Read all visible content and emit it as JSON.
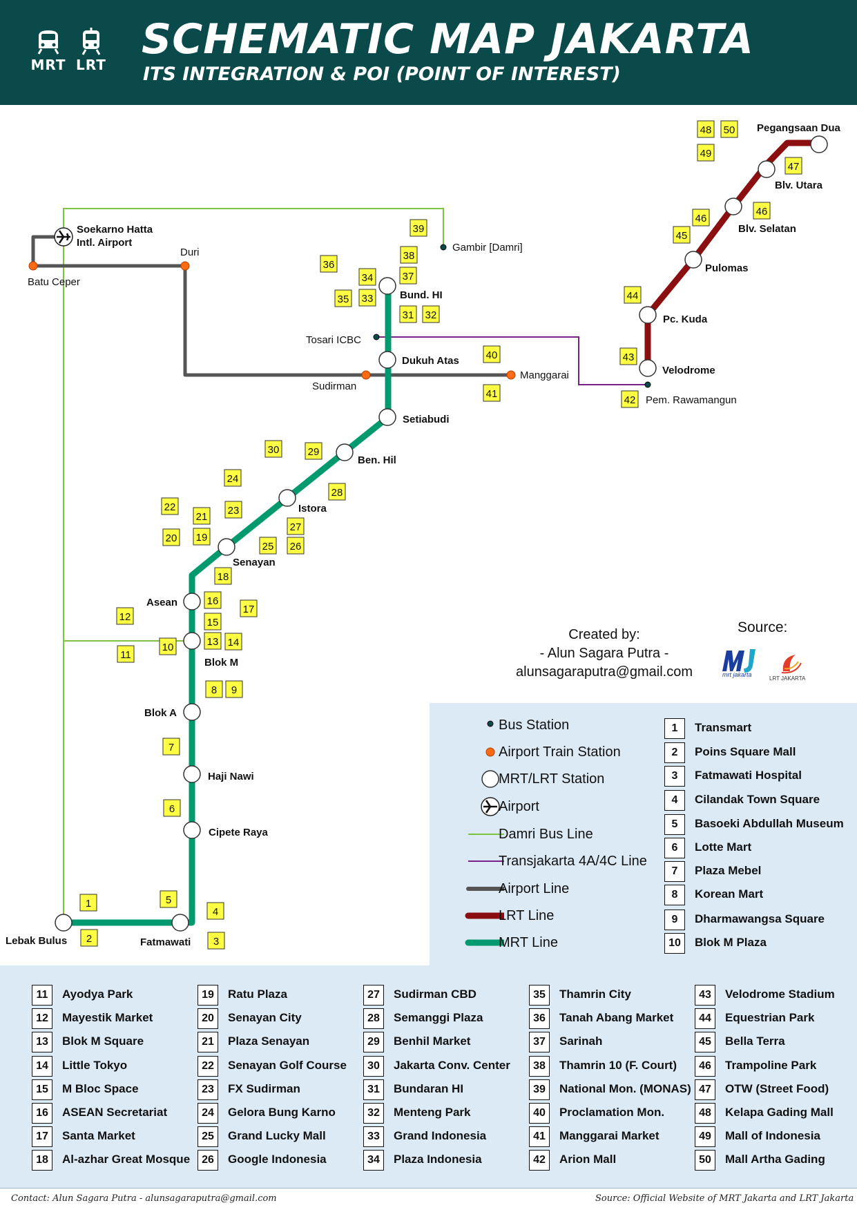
{
  "header": {
    "title": "SCHEMATIC MAP JAKARTA",
    "subtitle": "ITS INTEGRATION & POI (POINT OF INTEREST)",
    "mrt_icon_label": "MRT",
    "lrt_icon_label": "LRT",
    "background_color": "#0b4a4a"
  },
  "colors": {
    "mrt_line": "#009a6e",
    "lrt_line": "#8b0e10",
    "airport_line": "#555555",
    "damri_line": "#7dc241",
    "transjakarta_line": "#7b1f8a",
    "airport_station": "#ff6a13",
    "bus_station": "#0b4a4a",
    "poi_marker": "#ffff44"
  },
  "stations": {
    "mrt": [
      "Lebak Bulus",
      "Fatmawati",
      "Cipete Raya",
      "Haji Nawi",
      "Blok A",
      "Blok M",
      "Asean",
      "Senayan",
      "Istora",
      "Ben. Hil",
      "Setiabudi",
      "Dukuh Atas",
      "Bund. HI"
    ],
    "lrt": [
      "Velodrome",
      "Pc. Kuda",
      "Pulomas",
      "Blv. Selatan",
      "Blv. Utara",
      "Pegangsaan Dua"
    ],
    "airport_line": [
      "Soekarno Hatta Intl. Airport",
      "Batu Ceper",
      "Duri",
      "Sudirman",
      "Manggarai"
    ],
    "bus": [
      "Gambir [Damri]",
      "Tosari ICBC",
      "Pem. Rawamangun"
    ]
  },
  "map_labels": {
    "soekarno": "Soekarno Hatta",
    "soekarno2": "Intl. Airport",
    "batu_ceper": "Batu Ceper",
    "duri": "Duri",
    "gambir": "Gambir [Damri]",
    "tosari": "Tosari ICBC",
    "sudirman": "Sudirman",
    "manggarai": "Manggarai",
    "pem_rawamangun": "Pem. Rawamangun",
    "bund_hi": "Bund. HI",
    "dukuh_atas": "Dukuh Atas",
    "setiabudi": "Setiabudi",
    "ben_hil": "Ben. Hil",
    "istora": "Istora",
    "senayan": "Senayan",
    "asean": "Asean",
    "blok_m": "Blok M",
    "blok_a": "Blok A",
    "haji_nawi": "Haji Nawi",
    "cipete_raya": "Cipete Raya",
    "lebak_bulus": "Lebak Bulus",
    "fatmawati": "Fatmawati",
    "velodrome": "Velodrome",
    "pc_kuda": "Pc. Kuda",
    "pulomas": "Pulomas",
    "blv_selatan": "Blv. Selatan",
    "blv_utara": "Blv. Utara",
    "pegangsaan_dua": "Pegangsaan Dua"
  },
  "map_poi_markers": [
    "1",
    "2",
    "3",
    "4",
    "5",
    "6",
    "7",
    "8",
    "9",
    "10",
    "11",
    "12",
    "13",
    "14",
    "15",
    "16",
    "17",
    "18",
    "19",
    "20",
    "21",
    "22",
    "23",
    "24",
    "25",
    "26",
    "27",
    "28",
    "29",
    "30",
    "31",
    "32",
    "33",
    "34",
    "35",
    "36",
    "37",
    "38",
    "39",
    "40",
    "41",
    "42",
    "43",
    "44",
    "45",
    "46",
    "46",
    "47",
    "48",
    "49",
    "50"
  ],
  "credit": {
    "line1": "Created by:",
    "line2": "- Alun Sagara Putra -",
    "line3": "alunsagaraputra@gmail.com",
    "source_label": "Source:",
    "mrt_logo_text": "mrt jakarta",
    "lrt_logo_text": "LRT JAKARTA"
  },
  "legend": [
    {
      "symbol": "bus-station",
      "label": "Bus Station"
    },
    {
      "symbol": "airport-train-station",
      "label": "Airport Train Station"
    },
    {
      "symbol": "mrt-lrt-station",
      "label": "MRT/LRT Station"
    },
    {
      "symbol": "airport",
      "label": "Airport"
    },
    {
      "symbol": "damri-bus-line",
      "label": "Damri Bus Line"
    },
    {
      "symbol": "transjakarta-line",
      "label": "Transjakarta 4A/4C Line"
    },
    {
      "symbol": "airport-line",
      "label": "Airport Line"
    },
    {
      "symbol": "lrt-line",
      "label": "LRT Line"
    },
    {
      "symbol": "mrt-line",
      "label": "MRT Line"
    }
  ],
  "poi_list": [
    {
      "n": "1",
      "name": "Transmart"
    },
    {
      "n": "2",
      "name": "Poins Square Mall"
    },
    {
      "n": "3",
      "name": "Fatmawati Hospital"
    },
    {
      "n": "4",
      "name": "Cilandak Town Square"
    },
    {
      "n": "5",
      "name": "Basoeki Abdullah Museum"
    },
    {
      "n": "6",
      "name": "Lotte Mart"
    },
    {
      "n": "7",
      "name": "Plaza Mebel"
    },
    {
      "n": "8",
      "name": "Korean Mart"
    },
    {
      "n": "9",
      "name": "Dharmawangsa Square"
    },
    {
      "n": "10",
      "name": "Blok M Plaza"
    },
    {
      "n": "11",
      "name": "Ayodya Park"
    },
    {
      "n": "12",
      "name": "Mayestik Market"
    },
    {
      "n": "13",
      "name": "Blok M Square"
    },
    {
      "n": "14",
      "name": "Little Tokyo"
    },
    {
      "n": "15",
      "name": "M Bloc Space"
    },
    {
      "n": "16",
      "name": "ASEAN Secretariat"
    },
    {
      "n": "17",
      "name": "Santa Market"
    },
    {
      "n": "18",
      "name": "Al-azhar Great Mosque"
    },
    {
      "n": "19",
      "name": "Ratu Plaza"
    },
    {
      "n": "20",
      "name": "Senayan City"
    },
    {
      "n": "21",
      "name": "Plaza Senayan"
    },
    {
      "n": "22",
      "name": "Senayan Golf Course"
    },
    {
      "n": "23",
      "name": "FX Sudirman"
    },
    {
      "n": "24",
      "name": "Gelora Bung Karno"
    },
    {
      "n": "25",
      "name": "Grand Lucky Mall"
    },
    {
      "n": "26",
      "name": "Google Indonesia"
    },
    {
      "n": "27",
      "name": "Sudirman CBD"
    },
    {
      "n": "28",
      "name": "Semanggi Plaza"
    },
    {
      "n": "29",
      "name": "Benhil Market"
    },
    {
      "n": "30",
      "name": "Jakarta Conv. Center"
    },
    {
      "n": "31",
      "name": "Bundaran HI"
    },
    {
      "n": "32",
      "name": "Menteng Park"
    },
    {
      "n": "33",
      "name": "Grand Indonesia"
    },
    {
      "n": "34",
      "name": "Plaza Indonesia"
    },
    {
      "n": "35",
      "name": "Thamrin City"
    },
    {
      "n": "36",
      "name": "Tanah Abang Market"
    },
    {
      "n": "37",
      "name": "Sarinah"
    },
    {
      "n": "38",
      "name": "Thamrin 10 (F. Court)"
    },
    {
      "n": "39",
      "name": "National Mon. (MONAS)"
    },
    {
      "n": "40",
      "name": "Proclamation Mon."
    },
    {
      "n": "41",
      "name": "Manggarai Market"
    },
    {
      "n": "42",
      "name": "Arion Mall"
    },
    {
      "n": "43",
      "name": "Velodrome Stadium"
    },
    {
      "n": "44",
      "name": "Equestrian Park"
    },
    {
      "n": "45",
      "name": "Bella Terra"
    },
    {
      "n": "46",
      "name": "Trampoline Park"
    },
    {
      "n": "47",
      "name": "OTW (Street Food)"
    },
    {
      "n": "48",
      "name": "Kelapa Gading Mall"
    },
    {
      "n": "49",
      "name": "Mall of Indonesia"
    },
    {
      "n": "50",
      "name": "Mall Artha Gading"
    }
  ],
  "footer": {
    "contact": "Contact: Alun Sagara Putra - alunsagaraputra@gmail.com",
    "source": "Source: Official Website of MRT Jakarta and LRT Jakarta"
  }
}
